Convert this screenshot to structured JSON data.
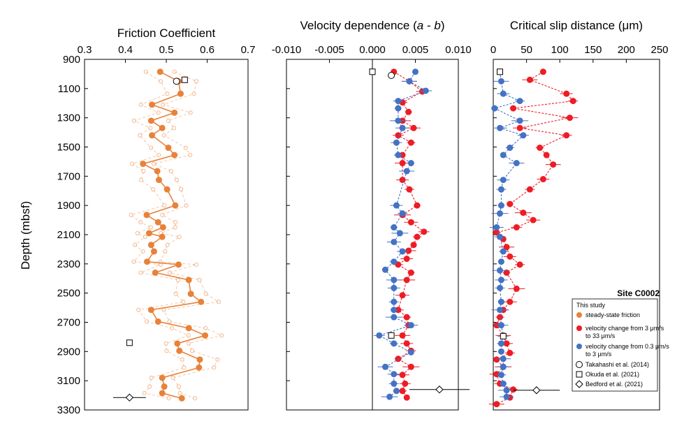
{
  "chart_data": [
    {
      "type": "line",
      "title": "Friction Coefficient",
      "xlabel": "Friction Coefficient",
      "ylabel": "Depth (mbsf)",
      "xlim": [
        0.3,
        0.7
      ],
      "xticks": [
        "0.3",
        "0.4",
        "0.5",
        "0.6",
        "0.7"
      ],
      "ylim": [
        900,
        3300
      ],
      "yticks": [
        "900",
        "1100",
        "1300",
        "1500",
        "1700",
        "1900",
        "2100",
        "2300",
        "2500",
        "2700",
        "2900",
        "3100",
        "3300"
      ],
      "series": [
        {
          "name": "steady-state friction",
          "color": "#e8823a",
          "points": [
            {
              "x": 0.485,
              "y": 985
            },
            {
              "x": 0.53,
              "y": 1050
            },
            {
              "x": 0.535,
              "y": 1135
            },
            {
              "x": 0.465,
              "y": 1210
            },
            {
              "x": 0.52,
              "y": 1265
            },
            {
              "x": 0.463,
              "y": 1320
            },
            {
              "x": 0.49,
              "y": 1370
            },
            {
              "x": 0.465,
              "y": 1420
            },
            {
              "x": 0.505,
              "y": 1505
            },
            {
              "x": 0.52,
              "y": 1555
            },
            {
              "x": 0.443,
              "y": 1615
            },
            {
              "x": 0.478,
              "y": 1665
            },
            {
              "x": 0.482,
              "y": 1725
            },
            {
              "x": 0.502,
              "y": 1790
            },
            {
              "x": 0.522,
              "y": 1900
            },
            {
              "x": 0.452,
              "y": 1965
            },
            {
              "x": 0.48,
              "y": 2015
            },
            {
              "x": 0.492,
              "y": 2050
            },
            {
              "x": 0.458,
              "y": 2090
            },
            {
              "x": 0.49,
              "y": 2115
            },
            {
              "x": 0.463,
              "y": 2170
            },
            {
              "x": 0.47,
              "y": 2215
            },
            {
              "x": 0.453,
              "y": 2285
            },
            {
              "x": 0.53,
              "y": 2305
            },
            {
              "x": 0.473,
              "y": 2360
            },
            {
              "x": 0.555,
              "y": 2410
            },
            {
              "x": 0.56,
              "y": 2505
            },
            {
              "x": 0.585,
              "y": 2560
            },
            {
              "x": 0.463,
              "y": 2615
            },
            {
              "x": 0.48,
              "y": 2695
            },
            {
              "x": 0.555,
              "y": 2740
            },
            {
              "x": 0.595,
              "y": 2790
            },
            {
              "x": 0.527,
              "y": 2845
            },
            {
              "x": 0.532,
              "y": 2895
            },
            {
              "x": 0.582,
              "y": 2955
            },
            {
              "x": 0.58,
              "y": 3010
            },
            {
              "x": 0.49,
              "y": 3080
            },
            {
              "x": 0.495,
              "y": 3140
            },
            {
              "x": 0.49,
              "y": 3185
            },
            {
              "x": 0.538,
              "y": 3220
            }
          ]
        }
      ],
      "reference_points": [
        {
          "name": "Takahashi et al. (2014)",
          "marker": "circle",
          "x": 0.525,
          "y": 1050
        },
        {
          "name": "Okuda et al. (2021)",
          "marker": "square",
          "x": 0.545,
          "y": 1040
        },
        {
          "name": "Okuda et al. (2021)",
          "marker": "square",
          "x": 0.41,
          "y": 2840
        },
        {
          "name": "Bedford et al. (2021)",
          "marker": "diamond",
          "x": 0.41,
          "y": 3215,
          "xerr": 0.04
        }
      ]
    },
    {
      "type": "scatter",
      "title": "Velocity dependence (a - b)",
      "title_parts": {
        "prefix": "Velocity dependence (",
        "a": "a",
        "minus": " - ",
        "b": "b",
        "suffix": ")"
      },
      "xlim": [
        -0.01,
        0.01
      ],
      "xticks": [
        "-0.010",
        "-0.005",
        "0.000",
        "0.005",
        "0.010"
      ],
      "ylim": [
        900,
        3300
      ],
      "series": [
        {
          "name": "velocity change from 3 μm/s to 33 μm/s",
          "color": "#ee1c25",
          "points": [
            {
              "x": 0.0025,
              "y": 985
            },
            {
              "x": 0.0043,
              "y": 1050
            },
            {
              "x": 0.0058,
              "y": 1120
            },
            {
              "x": 0.0035,
              "y": 1195
            },
            {
              "x": 0.0042,
              "y": 1260
            },
            {
              "x": 0.0035,
              "y": 1320
            },
            {
              "x": 0.0048,
              "y": 1370
            },
            {
              "x": 0.003,
              "y": 1420
            },
            {
              "x": 0.0045,
              "y": 1470
            },
            {
              "x": 0.0035,
              "y": 1555
            },
            {
              "x": 0.0035,
              "y": 1610
            },
            {
              "x": 0.0035,
              "y": 1725
            },
            {
              "x": 0.0043,
              "y": 1790
            },
            {
              "x": 0.0052,
              "y": 1900
            },
            {
              "x": 0.0035,
              "y": 1965
            },
            {
              "x": 0.0045,
              "y": 2015
            },
            {
              "x": 0.006,
              "y": 2080
            },
            {
              "x": 0.0052,
              "y": 2115
            },
            {
              "x": 0.0048,
              "y": 2170
            },
            {
              "x": 0.0042,
              "y": 2210
            },
            {
              "x": 0.004,
              "y": 2265
            },
            {
              "x": 0.003,
              "y": 2305
            },
            {
              "x": 0.0045,
              "y": 2360
            },
            {
              "x": 0.004,
              "y": 2410
            },
            {
              "x": 0.0035,
              "y": 2515
            },
            {
              "x": 0.003,
              "y": 2615
            },
            {
              "x": 0.004,
              "y": 2665
            },
            {
              "x": 0.0042,
              "y": 2720
            },
            {
              "x": 0.0035,
              "y": 2790
            },
            {
              "x": 0.004,
              "y": 2845
            },
            {
              "x": 0.0045,
              "y": 2895
            },
            {
              "x": 0.003,
              "y": 2950
            },
            {
              "x": 0.0045,
              "y": 3005
            },
            {
              "x": 0.0035,
              "y": 3060
            },
            {
              "x": 0.0038,
              "y": 3120
            },
            {
              "x": 0.0035,
              "y": 3170
            },
            {
              "x": 0.004,
              "y": 3215
            }
          ]
        },
        {
          "name": "velocity change from 0.3 μm/s to 3 μm/s",
          "color": "#4472c4",
          "points": [
            {
              "x": 0.005,
              "y": 985
            },
            {
              "x": 0.0043,
              "y": 1050
            },
            {
              "x": 0.0062,
              "y": 1115
            },
            {
              "x": 0.003,
              "y": 1185
            },
            {
              "x": 0.003,
              "y": 1235
            },
            {
              "x": 0.003,
              "y": 1320
            },
            {
              "x": 0.0035,
              "y": 1370
            },
            {
              "x": 0.0028,
              "y": 1470
            },
            {
              "x": 0.003,
              "y": 1555
            },
            {
              "x": 0.0045,
              "y": 1610
            },
            {
              "x": 0.004,
              "y": 1665
            },
            {
              "x": 0.0028,
              "y": 1900
            },
            {
              "x": 0.0035,
              "y": 1955
            },
            {
              "x": 0.0025,
              "y": 2050
            },
            {
              "x": 0.0032,
              "y": 2090
            },
            {
              "x": 0.0025,
              "y": 2150
            },
            {
              "x": 0.0035,
              "y": 2215
            },
            {
              "x": 0.0025,
              "y": 2285
            },
            {
              "x": 0.0015,
              "y": 2340
            },
            {
              "x": 0.0025,
              "y": 2410
            },
            {
              "x": 0.0025,
              "y": 2465
            },
            {
              "x": 0.0025,
              "y": 2560
            },
            {
              "x": 0.0025,
              "y": 2615
            },
            {
              "x": 0.0025,
              "y": 2665
            },
            {
              "x": 0.0045,
              "y": 2720
            },
            {
              "x": 0.0008,
              "y": 2790
            },
            {
              "x": 0.0025,
              "y": 2845
            },
            {
              "x": 0.0045,
              "y": 2905
            },
            {
              "x": 0.0015,
              "y": 3005
            },
            {
              "x": 0.0025,
              "y": 3055
            },
            {
              "x": 0.0025,
              "y": 3120
            },
            {
              "x": 0.0028,
              "y": 3170
            },
            {
              "x": 0.002,
              "y": 3210
            }
          ]
        }
      ],
      "reference_points": [
        {
          "name": "Takahashi et al. (2014)",
          "marker": "circle",
          "x": 0.0022,
          "y": 1010
        },
        {
          "name": "Okuda et al. (2021)",
          "marker": "square",
          "x": 0.0,
          "y": 985
        },
        {
          "name": "Okuda et al. (2021)",
          "marker": "square",
          "x": 0.0022,
          "y": 2790
        },
        {
          "name": "Bedford et al. (2021)",
          "marker": "diamond",
          "x": 0.0078,
          "y": 3160,
          "xerr": 0.0035
        }
      ]
    },
    {
      "type": "scatter",
      "title": "Critical slip distance (μm)",
      "xlim": [
        0,
        250
      ],
      "xticks": [
        "0",
        "50",
        "100",
        "150",
        "200",
        "250"
      ],
      "ylim": [
        900,
        3300
      ],
      "series": [
        {
          "name": "velocity change from 3 μm/s to 33 μm/s",
          "color": "#ee1c25",
          "points": [
            {
              "x": 75,
              "y": 985
            },
            {
              "x": 55,
              "y": 1040
            },
            {
              "x": 110,
              "y": 1135
            },
            {
              "x": 120,
              "y": 1185
            },
            {
              "x": 30,
              "y": 1235
            },
            {
              "x": 115,
              "y": 1300
            },
            {
              "x": 40,
              "y": 1370
            },
            {
              "x": 110,
              "y": 1420
            },
            {
              "x": 70,
              "y": 1505
            },
            {
              "x": 80,
              "y": 1555
            },
            {
              "x": 90,
              "y": 1620
            },
            {
              "x": 75,
              "y": 1720
            },
            {
              "x": 55,
              "y": 1790
            },
            {
              "x": 25,
              "y": 1890
            },
            {
              "x": 45,
              "y": 1950
            },
            {
              "x": 60,
              "y": 2000
            },
            {
              "x": 35,
              "y": 2050
            },
            {
              "x": 5,
              "y": 2085
            },
            {
              "x": 15,
              "y": 2130
            },
            {
              "x": 20,
              "y": 2185
            },
            {
              "x": 25,
              "y": 2250
            },
            {
              "x": 40,
              "y": 2305
            },
            {
              "x": 20,
              "y": 2360
            },
            {
              "x": 35,
              "y": 2470
            },
            {
              "x": 25,
              "y": 2560
            },
            {
              "x": 15,
              "y": 2615
            },
            {
              "x": 10,
              "y": 2665
            },
            {
              "x": 5,
              "y": 2720
            },
            {
              "x": 15,
              "y": 2790
            },
            {
              "x": 20,
              "y": 2845
            },
            {
              "x": 25,
              "y": 2910
            },
            {
              "x": 5,
              "y": 2955
            },
            {
              "x": 15,
              "y": 3005
            },
            {
              "x": 5,
              "y": 3055
            },
            {
              "x": 10,
              "y": 3120
            },
            {
              "x": 30,
              "y": 3160
            },
            {
              "x": 25,
              "y": 3215
            },
            {
              "x": 5,
              "y": 3260
            }
          ]
        },
        {
          "name": "velocity change from 0.3 μm/s to 3 μm/s",
          "color": "#4472c4",
          "points": [
            {
              "x": 10,
              "y": 985
            },
            {
              "x": 12,
              "y": 1050
            },
            {
              "x": 15,
              "y": 1135
            },
            {
              "x": 40,
              "y": 1185
            },
            {
              "x": 2,
              "y": 1235
            },
            {
              "x": 40,
              "y": 1320
            },
            {
              "x": 10,
              "y": 1370
            },
            {
              "x": 45,
              "y": 1420
            },
            {
              "x": 25,
              "y": 1505
            },
            {
              "x": 15,
              "y": 1555
            },
            {
              "x": 35,
              "y": 1610
            },
            {
              "x": 15,
              "y": 1725
            },
            {
              "x": 12,
              "y": 1790
            },
            {
              "x": 12,
              "y": 1900
            },
            {
              "x": 10,
              "y": 1955
            },
            {
              "x": 5,
              "y": 2050
            },
            {
              "x": 10,
              "y": 2115
            },
            {
              "x": 15,
              "y": 2215
            },
            {
              "x": 12,
              "y": 2285
            },
            {
              "x": 10,
              "y": 2345
            },
            {
              "x": 12,
              "y": 2410
            },
            {
              "x": 10,
              "y": 2465
            },
            {
              "x": 12,
              "y": 2560
            },
            {
              "x": 10,
              "y": 2615
            },
            {
              "x": 12,
              "y": 2720
            },
            {
              "x": 15,
              "y": 2795
            },
            {
              "x": 12,
              "y": 2845
            },
            {
              "x": 12,
              "y": 2900
            },
            {
              "x": 15,
              "y": 2950
            },
            {
              "x": 15,
              "y": 3005
            },
            {
              "x": 12,
              "y": 3060
            },
            {
              "x": 15,
              "y": 3120
            },
            {
              "x": 20,
              "y": 3165
            },
            {
              "x": 20,
              "y": 3210
            }
          ]
        }
      ],
      "reference_points": [
        {
          "name": "Okuda et al. (2021)",
          "marker": "square",
          "x": 10,
          "y": 985
        },
        {
          "name": "Okuda et al. (2021)",
          "marker": "square",
          "x": 15,
          "y": 2795
        },
        {
          "name": "Bedford et al. (2021)",
          "marker": "diamond",
          "x": 65,
          "y": 3165,
          "xerr": 35
        }
      ]
    }
  ],
  "annotation": "Site C0002",
  "legend": {
    "header": "This study",
    "items": [
      {
        "label": "steady-state friction",
        "marker": "filled-circle",
        "color": "#e8823a"
      },
      {
        "label": "velocity change from 3 μm/s to 33 μm/s",
        "marker": "filled-circle",
        "color": "#ee1c25"
      },
      {
        "label": "velocity change from 0.3 μm/s to 3 μm/s",
        "marker": "filled-circle",
        "color": "#4472c4"
      },
      {
        "label": "Takahashi et al. (2014)",
        "marker": "open-circle"
      },
      {
        "label": "Okuda et al. (2021)",
        "marker": "open-square"
      },
      {
        "label": "Bedford et al. (2021)",
        "marker": "open-diamond"
      }
    ]
  }
}
